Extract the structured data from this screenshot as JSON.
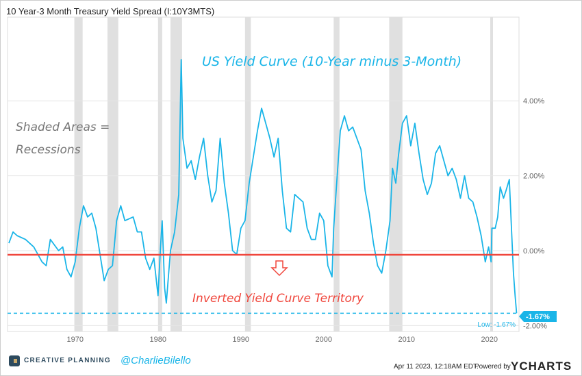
{
  "title": "10 Year-3 Month Treasury Yield Spread (I:10Y3MTS)",
  "footer": {
    "brand": "CREATIVE PLANNING",
    "handle": "@CharlieBilello",
    "date": "Apr 11 2023, 12:18AM EDT.",
    "powered_by": "Powered by",
    "ycharts": "YCHARTS"
  },
  "chart_data": {
    "type": "line",
    "colors": {
      "series": "#1ab5e8",
      "inversion_line": "#f0463c",
      "recession": "#e0e0e0",
      "annotation_red": "#f0463c",
      "annotation_gray": "#777777"
    },
    "annotations": {
      "headline": "US Yield Curve (10-Year minus 3-Month)",
      "shaded_1": "Shaded Areas =",
      "shaded_2": "Recessions",
      "inverted": "Inverted Yield Curve Territory",
      "low_label": "Low: -1.67%",
      "last_value": "-1.67%"
    },
    "inversion_level": 0,
    "low_value": -1.67,
    "x_ticks": [
      "1970",
      "1980",
      "1990",
      "2000",
      "2010",
      "2020"
    ],
    "y_ticks": [
      "4.00%",
      "2.00%",
      "0.00%",
      "-2.00%"
    ],
    "y_tick_values": [
      4,
      2,
      0,
      -2
    ],
    "xlim": [
      1962,
      2023.3
    ],
    "ylim": [
      -2.2,
      6.3
    ],
    "grid": "horizontal",
    "recessions": [
      [
        1969.9,
        1970.9
      ],
      [
        1973.9,
        1975.2
      ],
      [
        1980.0,
        1980.5
      ],
      [
        1981.5,
        1982.9
      ],
      [
        1990.5,
        1991.2
      ],
      [
        2001.2,
        2001.9
      ],
      [
        2007.9,
        2009.5
      ],
      [
        2020.1,
        2020.3
      ]
    ],
    "series": [
      {
        "x": [
          1962,
          1962.5,
          1963,
          1964,
          1965,
          1966,
          1966.5,
          1967,
          1968,
          1968.5,
          1969,
          1969.5,
          1970,
          1970.5,
          1971,
          1971.5,
          1972,
          1972.5,
          1973,
          1973.5,
          1974,
          1974.5,
          1975,
          1975.5,
          1976,
          1977,
          1977.5,
          1978,
          1978.5,
          1979,
          1979.5,
          1980,
          1980.3,
          1980.5,
          1980.8,
          1981,
          1981.5,
          1982,
          1982.5,
          1982.8,
          1983,
          1983.5,
          1984,
          1984.5,
          1985,
          1985.5,
          1986,
          1986.5,
          1987,
          1987.5,
          1988,
          1988.5,
          1989,
          1989.5,
          1990,
          1990.5,
          1991,
          1991.5,
          1992,
          1992.5,
          1993,
          1993.5,
          1994,
          1994.5,
          1995,
          1995.5,
          1996,
          1996.5,
          1997,
          1997.5,
          1998,
          1998.5,
          1999,
          1999.5,
          2000,
          2000.5,
          2001,
          2001.2,
          2001.5,
          2002,
          2002.5,
          2003,
          2003.5,
          2004,
          2004.5,
          2005,
          2005.5,
          2006,
          2006.5,
          2007,
          2007.5,
          2008,
          2008.3,
          2008.7,
          2009,
          2009.5,
          2010,
          2010.5,
          2011,
          2011.5,
          2012,
          2012.5,
          2013,
          2013.5,
          2014,
          2014.5,
          2015,
          2015.5,
          2016,
          2016.5,
          2017,
          2017.5,
          2018,
          2018.5,
          2019,
          2019.5,
          2019.9,
          2020.2,
          2020.3,
          2020.7,
          2021,
          2021.3,
          2021.7,
          2022,
          2022.4,
          2022.7,
          2022.9,
          2023.1,
          2023.28
        ],
        "y": [
          0.2,
          0.5,
          0.4,
          0.3,
          0.1,
          -0.3,
          -0.4,
          0.3,
          0.0,
          0.1,
          -0.5,
          -0.7,
          -0.3,
          0.6,
          1.2,
          0.9,
          1.0,
          0.6,
          -0.1,
          -0.8,
          -0.5,
          -0.4,
          0.8,
          1.2,
          0.8,
          0.9,
          0.5,
          0.5,
          -0.2,
          -0.5,
          -0.2,
          -1.2,
          0.1,
          0.8,
          -1.0,
          -1.4,
          0.0,
          0.5,
          1.5,
          5.1,
          3.0,
          2.2,
          2.4,
          1.9,
          2.5,
          3.0,
          2.0,
          1.3,
          1.6,
          3.0,
          1.8,
          1.0,
          0.0,
          -0.1,
          0.6,
          0.8,
          1.8,
          2.5,
          3.2,
          3.8,
          3.4,
          3.0,
          2.5,
          3.0,
          1.6,
          0.6,
          0.5,
          1.5,
          1.4,
          1.3,
          0.6,
          0.3,
          0.3,
          1.0,
          0.8,
          -0.4,
          -0.7,
          0.6,
          1.6,
          3.2,
          3.6,
          3.2,
          3.3,
          3.0,
          2.7,
          1.6,
          1.0,
          0.2,
          -0.4,
          -0.6,
          0.0,
          0.8,
          2.2,
          1.8,
          2.5,
          3.4,
          3.6,
          2.8,
          3.4,
          2.6,
          1.9,
          1.5,
          1.8,
          2.6,
          2.8,
          2.4,
          2.0,
          2.2,
          1.9,
          1.4,
          2.0,
          1.4,
          1.3,
          0.9,
          0.4,
          -0.3,
          0.1,
          -0.3,
          0.6,
          0.6,
          0.9,
          1.7,
          1.4,
          1.6,
          1.9,
          0.4,
          -0.6,
          -1.2,
          -1.67
        ]
      }
    ]
  }
}
